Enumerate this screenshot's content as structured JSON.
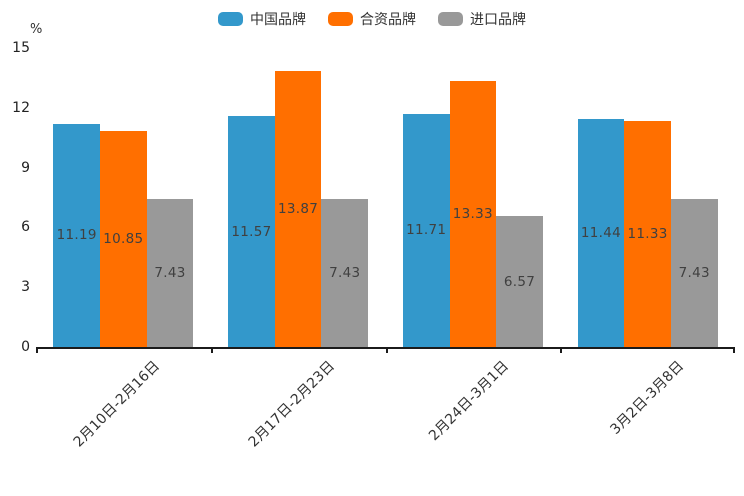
{
  "chart_data": {
    "type": "bar",
    "title": "",
    "categories": [
      "2月10日-2月16日",
      "2月17日-2月23日",
      "2月24日-3月1日",
      "3月2日-3月8日"
    ],
    "series": [
      {
        "name": "中国品牌",
        "color": "#3398CB",
        "values": [
          11.19,
          11.57,
          11.71,
          11.44
        ]
      },
      {
        "name": "合资品牌",
        "color": "#FF6F00",
        "values": [
          10.85,
          13.87,
          13.33,
          11.33
        ]
      },
      {
        "name": "进口品牌",
        "color": "#999999",
        "values": [
          7.43,
          7.43,
          6.57,
          7.43
        ]
      }
    ],
    "xlabel": "",
    "ylabel": "%",
    "ylim": [
      0,
      15
    ],
    "yticks": [
      0,
      3,
      6,
      9,
      12,
      15
    ],
    "grid": false,
    "legend_position": "top",
    "value_labels_shown": true,
    "value_label_color": "#404040",
    "axis_color": "#1b1b1b"
  }
}
